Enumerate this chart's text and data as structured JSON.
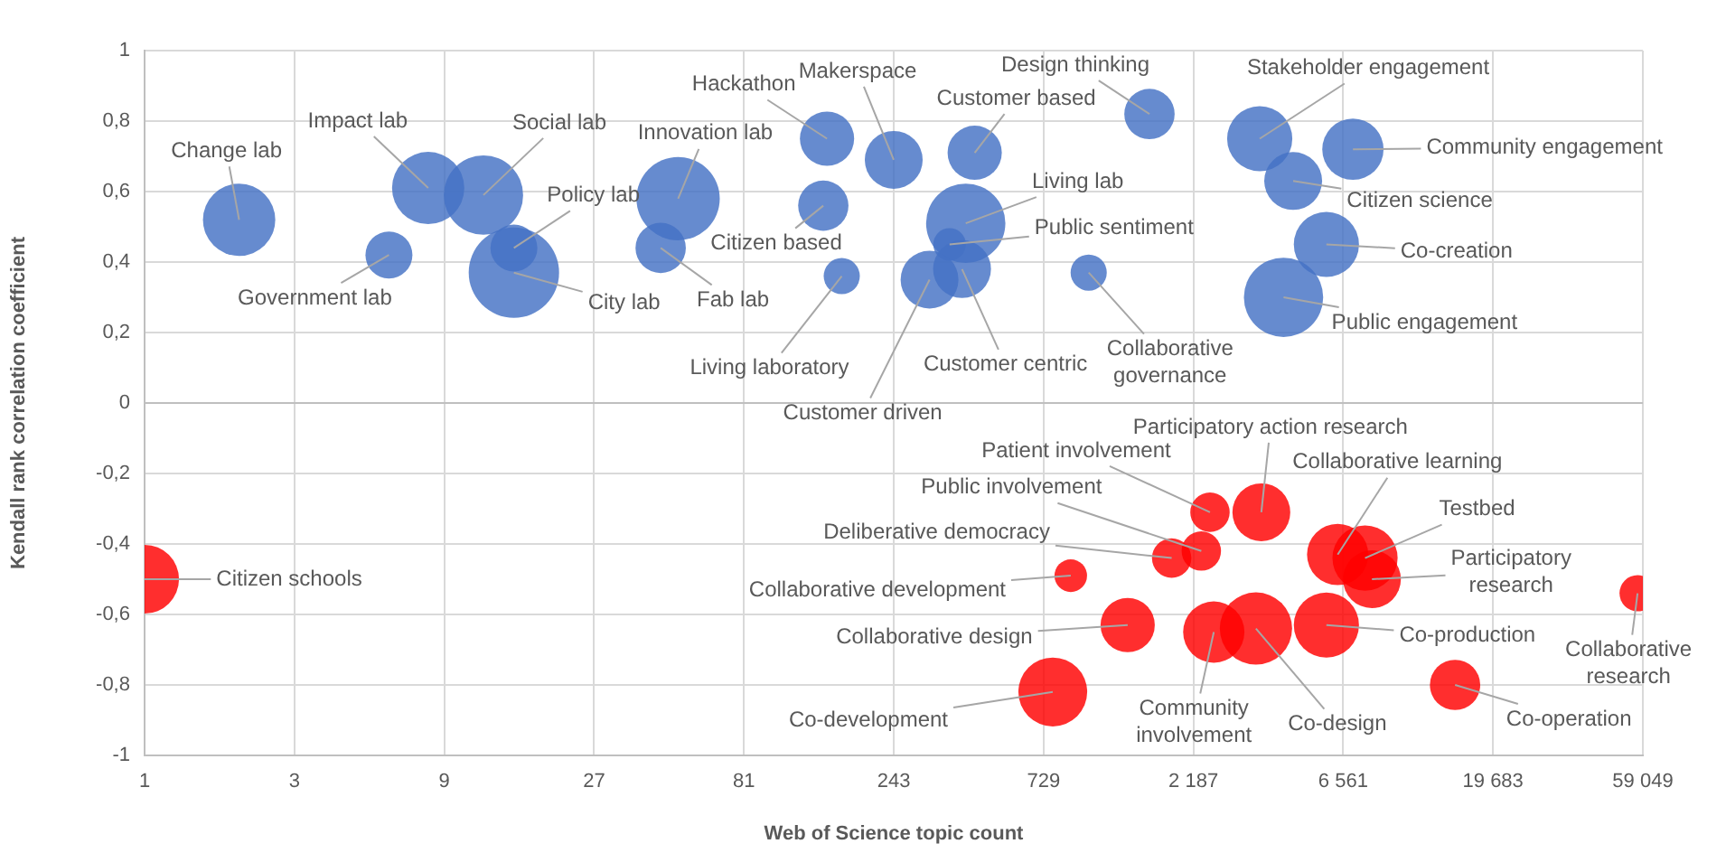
{
  "chart_data": {
    "type": "bubble",
    "xlabel": "Web of Science topic count",
    "ylabel": "Kendall rank correlation coefficient",
    "log": "x",
    "grid": true,
    "legend": false,
    "xlim": [
      1,
      59049
    ],
    "xticks": [
      1,
      3,
      9,
      27,
      81,
      243,
      729,
      {
        "value": 2187,
        "label": "2 187"
      },
      {
        "value": 6561,
        "label": "6 561"
      },
      {
        "value": 19683,
        "label": "19 683"
      },
      {
        "value": 59049,
        "label": "59 049"
      }
    ],
    "ylim": [
      -1,
      1
    ],
    "yticks": [
      -1,
      {
        "value": -0.8,
        "label": "-0,8"
      },
      {
        "value": -0.6,
        "label": "-0,6"
      },
      {
        "value": -0.4,
        "label": "-0,4"
      },
      {
        "value": -0.2,
        "label": "-0,2"
      },
      0,
      {
        "value": 0.2,
        "label": "0,2"
      },
      {
        "value": 0.4,
        "label": "0,4"
      },
      {
        "value": 0.6,
        "label": "0,6"
      },
      {
        "value": 0.8,
        "label": "0,8"
      },
      1
    ],
    "series": [
      {
        "color": "#4472c4",
        "x": [
          2,
          6,
          8,
          12,
          15,
          15,
          50,
          44,
          149,
          145,
          166,
          243,
          440,
          412,
          366,
          316,
          401,
          1015,
          1585,
          3557,
          7045,
          4546,
          5800,
          4236
        ],
        "values": [
          0.52,
          0.42,
          0.61,
          0.59,
          0.44,
          0.37,
          0.58,
          0.44,
          0.75,
          0.56,
          0.36,
          0.69,
          0.71,
          0.51,
          0.45,
          0.35,
          0.38,
          0.37,
          0.82,
          0.75,
          0.72,
          0.63,
          0.45,
          0.3
        ],
        "sizes": [
          0.64,
          0.27,
          0.64,
          0.77,
          0.27,
          1,
          0.85,
          0.31,
          0.36,
          0.31,
          0.16,
          0.41,
          0.36,
          0.77,
          0.13,
          0.41,
          0.41,
          0.16,
          0.31,
          0.52,
          0.46,
          0.41,
          0.52,
          0.77
        ]
      },
      {
        "color": "#ff0000",
        "x": [
          1,
          890,
          1351,
          780,
          1865,
          2318,
          2470,
          3600,
          2540,
          3460,
          5800,
          6300,
          7700,
          8100,
          14900,
          56800
        ],
        "values": [
          -0.5,
          -0.49,
          -0.63,
          -0.82,
          -0.44,
          -0.42,
          -0.31,
          -0.31,
          -0.65,
          -0.64,
          -0.63,
          -0.43,
          -0.44,
          -0.5,
          -0.8,
          -0.54
        ],
        "sizes": [
          0.58,
          0.13,
          0.36,
          0.58,
          0.19,
          0.19,
          0.19,
          0.41,
          0.46,
          0.64,
          0.52,
          0.46,
          0.52,
          0.41,
          0.31,
          0.16
        ]
      }
    ],
    "annotations": [
      {
        "text": "Change lab",
        "x": 2,
        "y": 0.52
      },
      {
        "text": "Government lab",
        "x": 6,
        "y": 0.42
      },
      {
        "text": "Impact lab",
        "x": 8,
        "y": 0.61
      },
      {
        "text": "Social lab",
        "x": 12,
        "y": 0.59
      },
      {
        "text": "Policy lab",
        "x": 15,
        "y": 0.44
      },
      {
        "text": "City lab",
        "x": 15,
        "y": 0.37
      },
      {
        "text": "Innovation lab",
        "x": 50,
        "y": 0.58
      },
      {
        "text": "Fab lab",
        "x": 44,
        "y": 0.44
      },
      {
        "text": "Hackathon",
        "x": 149,
        "y": 0.75
      },
      {
        "text": "Citizen based",
        "x": 145,
        "y": 0.56
      },
      {
        "text": "Living laboratory",
        "x": 166,
        "y": 0.36
      },
      {
        "text": "Makerspace",
        "x": 243,
        "y": 0.69
      },
      {
        "text": "Customer based",
        "x": 440,
        "y": 0.71
      },
      {
        "text": "Living lab",
        "x": 412,
        "y": 0.51
      },
      {
        "text": "Public sentiment",
        "x": 366,
        "y": 0.45
      },
      {
        "text": "Customer driven",
        "x": 316,
        "y": 0.35
      },
      {
        "text": "Customer centric",
        "x": 401,
        "y": 0.38
      },
      {
        "text": "Collaborative governance",
        "x": 1015,
        "y": 0.37
      },
      {
        "text": "Design thinking",
        "x": 1585,
        "y": 0.82
      },
      {
        "text": "Stakeholder engagement",
        "x": 3557,
        "y": 0.75
      },
      {
        "text": "Community engagement",
        "x": 7045,
        "y": 0.72
      },
      {
        "text": "Citizen science",
        "x": 4546,
        "y": 0.63
      },
      {
        "text": "Co-creation",
        "x": 5800,
        "y": 0.45
      },
      {
        "text": "Public engagement",
        "x": 4236,
        "y": 0.3
      },
      {
        "text": "Citizen schools",
        "x": 1,
        "y": -0.5
      },
      {
        "text": "Collaborative development",
        "x": 890,
        "y": -0.49
      },
      {
        "text": "Collaborative design",
        "x": 1351,
        "y": -0.63
      },
      {
        "text": "Co-development",
        "x": 780,
        "y": -0.82
      },
      {
        "text": "Deliberative democracy",
        "x": 1865,
        "y": -0.44
      },
      {
        "text": "Public involvement",
        "x": 2318,
        "y": -0.42
      },
      {
        "text": "Patient involvement",
        "x": 2470,
        "y": -0.31
      },
      {
        "text": "Participatory action research",
        "x": 3600,
        "y": -0.31
      },
      {
        "text": "Community involvement",
        "x": 2540,
        "y": -0.65
      },
      {
        "text": "Co-design",
        "x": 3460,
        "y": -0.64
      },
      {
        "text": "Co-production",
        "x": 5800,
        "y": -0.63
      },
      {
        "text": "Collaborative learning",
        "x": 6300,
        "y": -0.43
      },
      {
        "text": "Testbed",
        "x": 7700,
        "y": -0.44
      },
      {
        "text": "Participatory research",
        "x": 8100,
        "y": -0.5
      },
      {
        "text": "Co-operation",
        "x": 14900,
        "y": -0.8
      },
      {
        "text": "Collaborative research",
        "x": 56800,
        "y": -0.54
      }
    ]
  }
}
